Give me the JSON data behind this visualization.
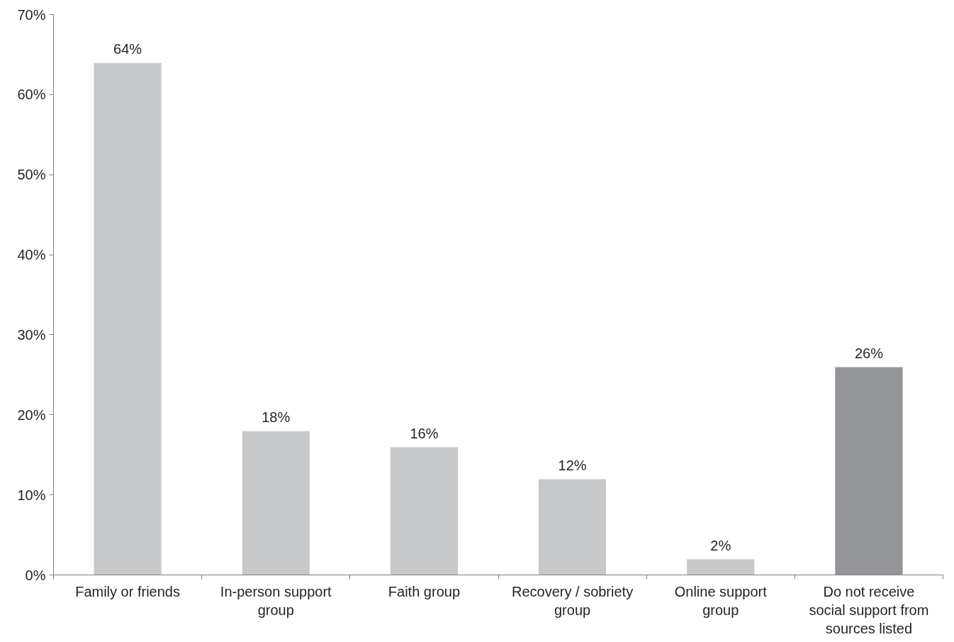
{
  "chart_data": {
    "type": "bar",
    "categories": [
      "Family or friends",
      "In-person support group",
      "Faith group",
      "Recovery / sobriety group",
      "Online support group",
      "Do not receive social support from sources listed"
    ],
    "values": [
      64,
      18,
      16,
      12,
      2,
      26
    ],
    "colors": [
      "#c7c8ca",
      "#c7c8ca",
      "#c7c8ca",
      "#c7c8ca",
      "#c7c8ca",
      "#939598"
    ],
    "ylim": [
      0,
      70
    ],
    "yticks": [
      {
        "value": 0,
        "label": "0%"
      },
      {
        "value": 10,
        "label": "10%"
      },
      {
        "value": 20,
        "label": "20%"
      },
      {
        "value": 30,
        "label": "30%"
      },
      {
        "value": 40,
        "label": "40%"
      },
      {
        "value": 50,
        "label": "50%"
      },
      {
        "value": 60,
        "label": "60%"
      },
      {
        "value": 70,
        "label": "70%"
      }
    ],
    "value_labels": [
      "64%",
      "18%",
      "16%",
      "12%",
      "2%",
      "26%"
    ],
    "data_labels": true
  }
}
